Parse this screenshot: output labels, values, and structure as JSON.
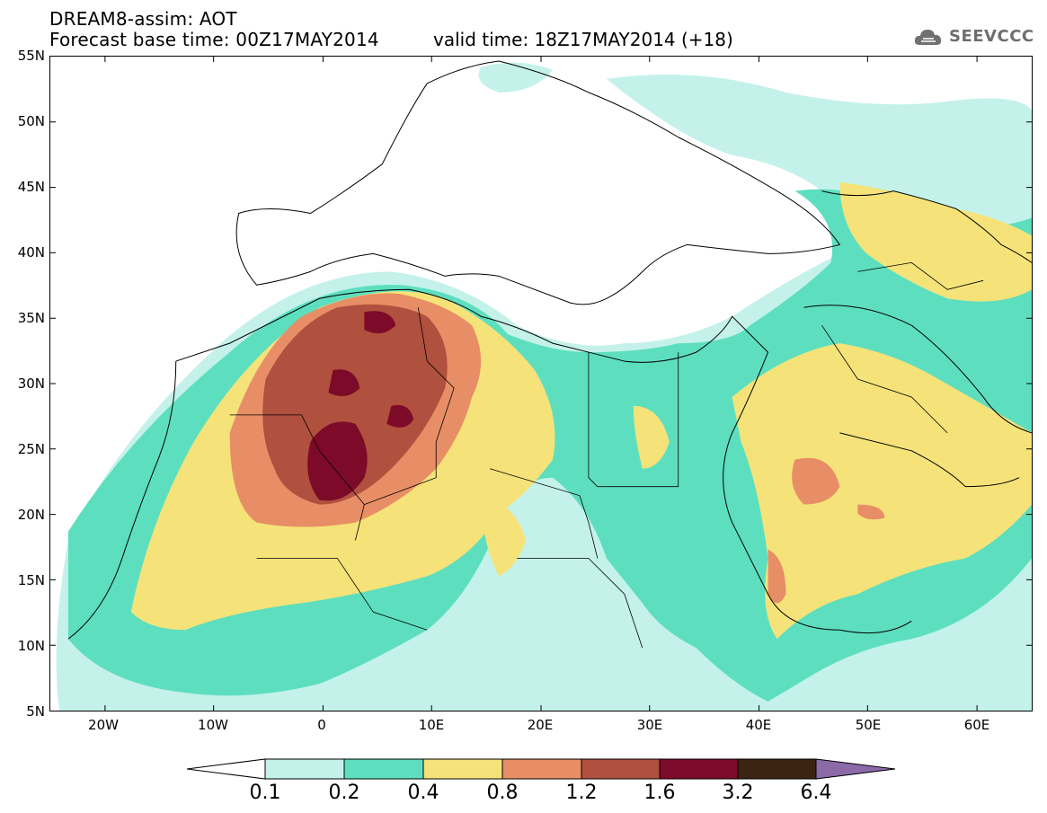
{
  "header": {
    "model_line": "DREAM8-assim: AOT",
    "base_time_line": "Forecast base time: 00Z17MAY2014",
    "valid_time_line": "valid time: 18Z17MAY2014 (+18)",
    "logo_text": "SEEVCCC"
  },
  "axes": {
    "lat_labels": [
      "55N",
      "50N",
      "45N",
      "40N",
      "35N",
      "30N",
      "25N",
      "20N",
      "15N",
      "10N",
      "5N"
    ],
    "lon_labels": [
      "20W",
      "10W",
      "0",
      "10E",
      "20E",
      "30E",
      "40E",
      "50E",
      "60E"
    ],
    "lon_range": [
      -25,
      65
    ],
    "lat_range": [
      5,
      55
    ]
  },
  "legend": {
    "labels": [
      "0.1",
      "0.2",
      "0.4",
      "0.8",
      "1.2",
      "1.6",
      "3.2",
      "6.4"
    ],
    "colors": [
      "#ffffff",
      "#c4f2ea",
      "#5ddfbf",
      "#f5e37a",
      "#e88e66",
      "#b0503e",
      "#7d0a28",
      "#3b2412",
      "#8c6aa8"
    ]
  }
}
